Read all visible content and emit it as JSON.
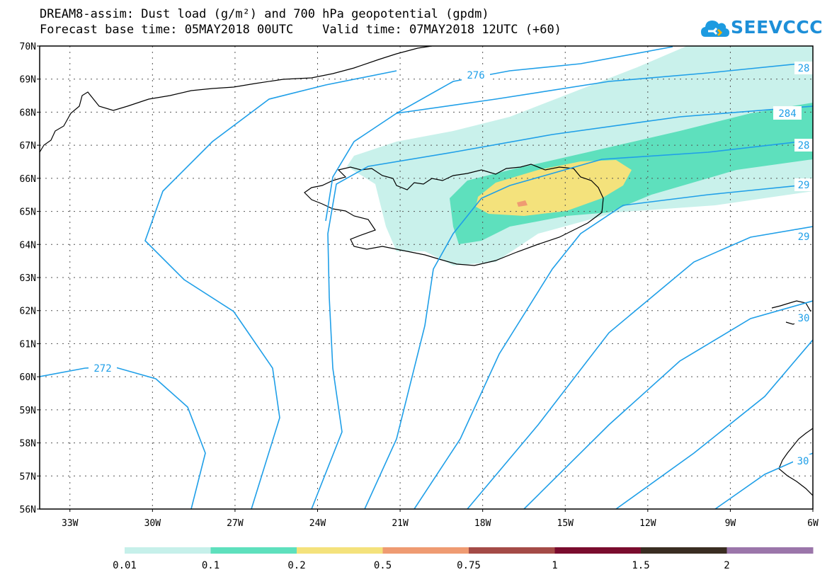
{
  "title": {
    "line1": "DREAM8-assim: Dust load (g/m²) and 700 hPa geopotential (gpdm)",
    "line2": "Forecast base time: 05MAY2018 00UTC    Valid time: 07MAY2018 12UTC (+60)"
  },
  "logo": {
    "text": "SEEVCCC",
    "icon": "cloud-logo-icon"
  },
  "map": {
    "lat_labels": [
      "70N",
      "69N",
      "68N",
      "67N",
      "66N",
      "65N",
      "64N",
      "63N",
      "62N",
      "61N",
      "60N",
      "59N",
      "58N",
      "57N",
      "56N"
    ],
    "lon_labels": [
      "33W",
      "30W",
      "27W",
      "24W",
      "21W",
      "18W",
      "15W",
      "12W",
      "9W",
      "6W"
    ],
    "contour_labels": [
      "276",
      "28",
      "284",
      "28",
      "29",
      "29",
      "272",
      "30",
      "30"
    ]
  },
  "legend": {
    "colors": [
      "#c6f0ea",
      "#5ee0bd",
      "#f4e27c",
      "#ef9b72",
      "#a44b47",
      "#7a0c2e",
      "#3a2d22",
      "#9b76aa"
    ],
    "labels": [
      "0.01",
      "0.1",
      "0.2",
      "0.5",
      "0.75",
      "1",
      "1.5",
      "2"
    ]
  }
}
